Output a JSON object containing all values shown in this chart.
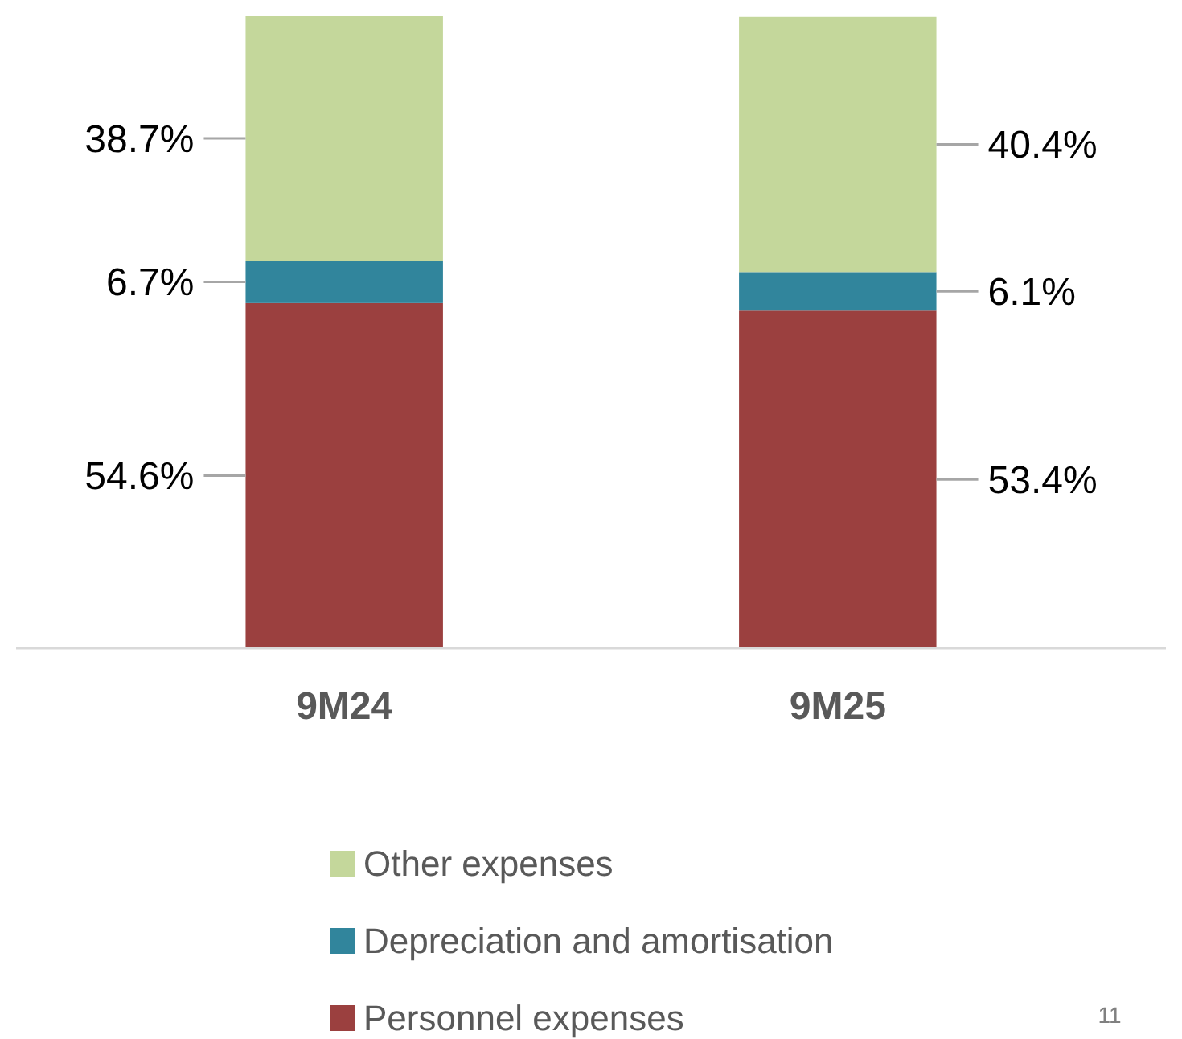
{
  "chart_data": {
    "type": "bar",
    "stacked": true,
    "categories": [
      "9M24",
      "9M25"
    ],
    "series": [
      {
        "name": "Personnel expenses",
        "color": "#9b403f",
        "values": [
          54.6,
          53.4
        ],
        "value_labels": [
          "54.6%",
          "53.4%"
        ]
      },
      {
        "name": "Depreciation and amortisation",
        "color": "#31859c",
        "values": [
          6.7,
          6.1
        ],
        "value_labels": [
          "6.7%",
          "6.1%"
        ]
      },
      {
        "name": "Other expenses",
        "color": "#c4d79b",
        "values": [
          38.7,
          40.4
        ],
        "value_labels": [
          "38.7%",
          "40.4%"
        ]
      }
    ],
    "legend": "bottom",
    "annotations": [
      "11"
    ]
  }
}
